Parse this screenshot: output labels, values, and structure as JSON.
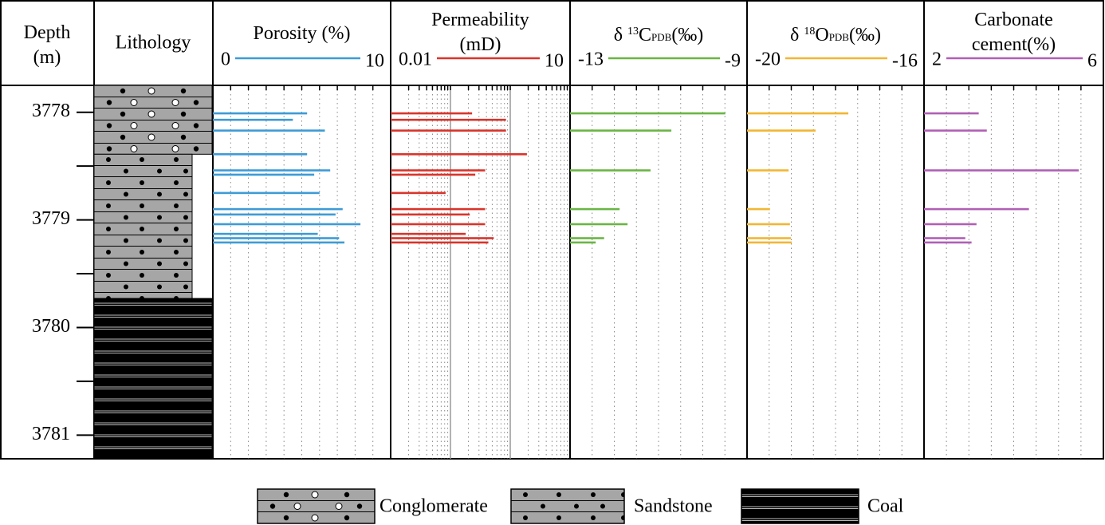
{
  "chart_data": {
    "type": "well_log",
    "depth_title": "Depth (m)",
    "lithology_title": "Lithology",
    "ylim": [
      3777.75,
      3781.22
    ],
    "yticks": [
      3778,
      3779,
      3780,
      3781
    ],
    "minor_yticks": [
      3778.5,
      3779.5,
      3780.5
    ],
    "lithology": [
      {
        "name": "Conglomerate",
        "from": 3777.75,
        "to": 3778.39
      },
      {
        "name": "Sandstone",
        "from": 3778.39,
        "to": 3779.73
      },
      {
        "name": "Coal",
        "from": 3779.73,
        "to": 3781.22
      }
    ],
    "tracks": [
      {
        "type": "bar",
        "title": "Porosity (%)",
        "color": "#3d9bd6",
        "log_scale": false,
        "xlim": [
          0,
          10
        ],
        "xticks": [
          1,
          2,
          3,
          4,
          5,
          6,
          7,
          8,
          9
        ],
        "depths": [
          3778.01,
          3778.07,
          3778.17,
          3778.39,
          3778.54,
          3778.58,
          3778.75,
          3778.9,
          3778.95,
          3779.04,
          3779.13,
          3779.17,
          3779.21
        ],
        "values": [
          5.3,
          4.5,
          6.3,
          5.3,
          6.6,
          5.7,
          6.0,
          7.3,
          6.9,
          8.3,
          5.9,
          7.1,
          7.4
        ]
      },
      {
        "type": "bar",
        "title": "Permeability (mD)",
        "color": "#d9342b",
        "log_scale": true,
        "xlim": [
          0.01,
          10
        ],
        "xticks": [
          0.02,
          0.03,
          0.04,
          0.05,
          0.06,
          0.07,
          0.08,
          0.09,
          0.1,
          0.2,
          0.3,
          0.4,
          0.5,
          0.6,
          0.7,
          0.8,
          0.9,
          1,
          2,
          3,
          4,
          5,
          6,
          7,
          8,
          9
        ],
        "depths": [
          3778.01,
          3778.07,
          3778.17,
          3778.39,
          3778.54,
          3778.58,
          3778.75,
          3778.9,
          3778.95,
          3779.04,
          3779.13,
          3779.17,
          3779.21
        ],
        "values": [
          0.23,
          0.85,
          0.85,
          1.9,
          0.38,
          0.26,
          0.083,
          0.38,
          0.21,
          0.38,
          0.18,
          0.53,
          0.43
        ]
      },
      {
        "type": "bar",
        "title_parts": [
          {
            "text": "δ "
          },
          {
            "text": "13",
            "style": "sup"
          },
          {
            "text": "C"
          },
          {
            "text": "PDB",
            "style": "sub"
          },
          {
            "text": "(‰)"
          }
        ],
        "color": "#6ab545",
        "log_scale": false,
        "xlim": [
          -13,
          -9
        ],
        "xticks": [
          -12.5,
          -12,
          -11.5,
          -11,
          -10.5,
          -10,
          -9.5
        ],
        "depths": [
          3778.01,
          3778.17,
          3778.54,
          3778.9,
          3779.04,
          3779.17,
          3779.21
        ],
        "values": [
          -9.49,
          -10.71,
          -11.18,
          -11.88,
          -11.7,
          -12.23,
          -12.42
        ]
      },
      {
        "type": "bar",
        "title_parts": [
          {
            "text": "δ "
          },
          {
            "text": "18",
            "style": "sup"
          },
          {
            "text": "O"
          },
          {
            "text": "PDB",
            "style": "sub"
          },
          {
            "text": "(‰)"
          }
        ],
        "color": "#f2b632",
        "log_scale": false,
        "xlim": [
          -20,
          -16
        ],
        "xticks": [
          -19.5,
          -19,
          -18.5,
          -18,
          -17.5,
          -17,
          -16.5
        ],
        "depths": [
          3778.01,
          3778.17,
          3778.54,
          3778.9,
          3779.04,
          3779.17,
          3779.21
        ],
        "values": [
          -17.71,
          -18.45,
          -19.06,
          -19.48,
          -19.03,
          -19.01,
          -18.99
        ]
      },
      {
        "type": "bar",
        "title": "Carbonate cement(%)",
        "color": "#b05fb5",
        "log_scale": false,
        "xlim": [
          2,
          6
        ],
        "xticks": [
          2.5,
          3,
          3.5,
          4,
          4.5,
          5,
          5.5
        ],
        "depths": [
          3778.01,
          3778.17,
          3778.54,
          3778.9,
          3779.04,
          3779.17,
          3779.21
        ],
        "values": [
          3.22,
          3.4,
          5.45,
          4.34,
          3.17,
          2.92,
          3.06
        ]
      }
    ]
  }
}
